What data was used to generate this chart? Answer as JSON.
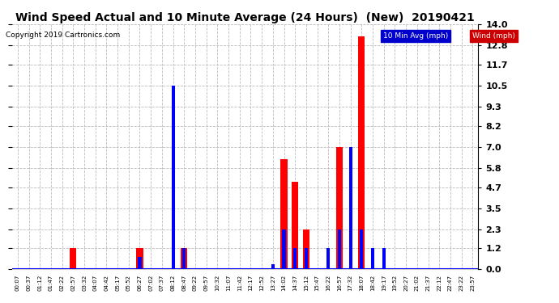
{
  "title": "Wind Speed Actual and 10 Minute Average (24 Hours)  (New)  20190421",
  "copyright": "Copyright 2019 Cartronics.com",
  "ylabel_right": [
    "0.0",
    "1.2",
    "2.3",
    "3.5",
    "4.7",
    "5.8",
    "7.0",
    "8.2",
    "9.3",
    "10.5",
    "11.7",
    "12.8",
    "14.0"
  ],
  "yticks": [
    0.0,
    1.2,
    2.3,
    3.5,
    4.7,
    5.8,
    7.0,
    8.2,
    9.3,
    10.5,
    11.7,
    12.8,
    14.0
  ],
  "ymin": 0.0,
  "ymax": 14.0,
  "background_color": "#ffffff",
  "grid_color": "#bbbbbb",
  "wind_color": "#ff0000",
  "avg_color": "#0000ff",
  "legend_avg_bg": "#0000cc",
  "legend_wind_bg": "#cc0000",
  "baseline_color": "#0000ff",
  "x_labels": [
    "00:07",
    "00:37",
    "01:12",
    "01:47",
    "02:22",
    "02:57",
    "03:32",
    "04:07",
    "04:42",
    "05:17",
    "05:52",
    "06:27",
    "07:02",
    "07:37",
    "08:12",
    "08:47",
    "09:22",
    "09:57",
    "10:32",
    "11:07",
    "11:42",
    "12:17",
    "12:52",
    "13:27",
    "14:02",
    "14:37",
    "15:12",
    "15:47",
    "16:22",
    "16:57",
    "17:32",
    "18:07",
    "18:42",
    "19:17",
    "19:52",
    "20:27",
    "21:02",
    "21:37",
    "22:12",
    "22:47",
    "23:22",
    "23:57"
  ],
  "wind_values": [
    0,
    0,
    0,
    0,
    0,
    1.2,
    0,
    0,
    0,
    0,
    0,
    1.2,
    0,
    0,
    0,
    1.2,
    0,
    0,
    0,
    0,
    0,
    0,
    0,
    0,
    6.3,
    5.0,
    2.3,
    0,
    0,
    7.0,
    0,
    13.3,
    0,
    0,
    0,
    0,
    0,
    0,
    0,
    0,
    0,
    0
  ],
  "avg_values": [
    0,
    0,
    0,
    0,
    0,
    0,
    0,
    0,
    0,
    0,
    0,
    0.7,
    0,
    0,
    10.5,
    1.2,
    0,
    0,
    0,
    0,
    0,
    0,
    0,
    0.3,
    2.3,
    1.2,
    1.2,
    0,
    1.2,
    2.3,
    7.0,
    2.3,
    1.2,
    1.2,
    0,
    0,
    0,
    0,
    0,
    0,
    0,
    0
  ]
}
